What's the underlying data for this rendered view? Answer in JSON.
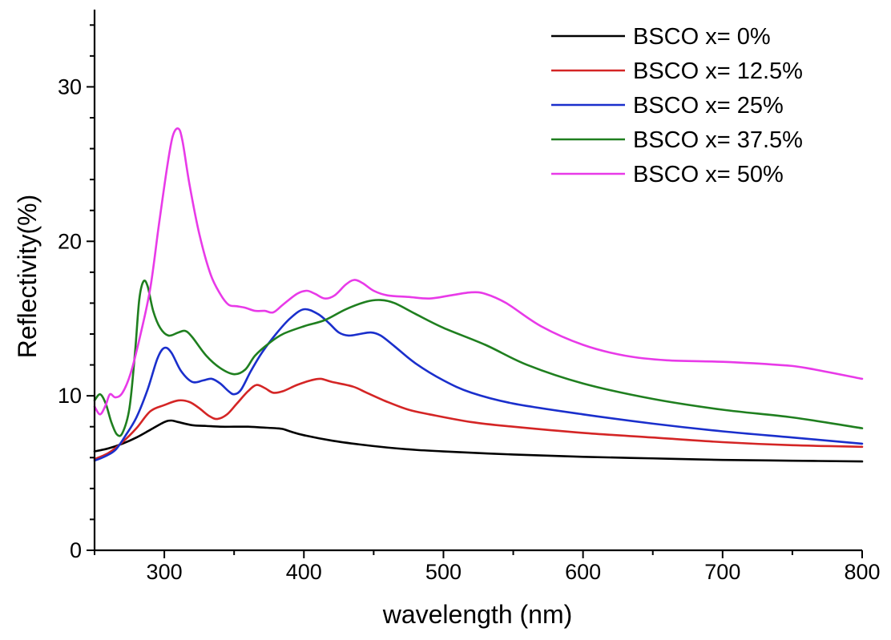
{
  "chart_data": {
    "type": "line",
    "title": "",
    "xlabel": "wavelength (nm)",
    "ylabel": "Reflectivity(%)",
    "xlim": [
      250,
      800
    ],
    "ylim": [
      0,
      35
    ],
    "x_ticks": [
      300,
      400,
      500,
      600,
      700,
      800
    ],
    "y_ticks": [
      0,
      10,
      20,
      30
    ],
    "grid": false,
    "legend_position": "top-right",
    "series": [
      {
        "name": "BSCO x= 0%",
        "color": "#000000",
        "points": [
          [
            250,
            6.4
          ],
          [
            260,
            6.6
          ],
          [
            270,
            6.9
          ],
          [
            280,
            7.3
          ],
          [
            290,
            7.8
          ],
          [
            300,
            8.3
          ],
          [
            305,
            8.4
          ],
          [
            310,
            8.3
          ],
          [
            320,
            8.1
          ],
          [
            330,
            8.05
          ],
          [
            340,
            8.0
          ],
          [
            350,
            8.0
          ],
          [
            360,
            8.0
          ],
          [
            370,
            7.95
          ],
          [
            380,
            7.9
          ],
          [
            385,
            7.85
          ],
          [
            390,
            7.7
          ],
          [
            400,
            7.45
          ],
          [
            420,
            7.1
          ],
          [
            440,
            6.85
          ],
          [
            460,
            6.65
          ],
          [
            480,
            6.5
          ],
          [
            500,
            6.4
          ],
          [
            550,
            6.2
          ],
          [
            600,
            6.05
          ],
          [
            650,
            5.95
          ],
          [
            700,
            5.85
          ],
          [
            750,
            5.8
          ],
          [
            800,
            5.75
          ]
        ]
      },
      {
        "name": "BSCO x= 12.5%",
        "color": "#d42525",
        "points": [
          [
            250,
            5.9
          ],
          [
            260,
            6.3
          ],
          [
            270,
            7.0
          ],
          [
            280,
            7.9
          ],
          [
            290,
            9.0
          ],
          [
            300,
            9.4
          ],
          [
            310,
            9.7
          ],
          [
            318,
            9.6
          ],
          [
            325,
            9.2
          ],
          [
            332,
            8.7
          ],
          [
            338,
            8.5
          ],
          [
            345,
            8.8
          ],
          [
            352,
            9.5
          ],
          [
            360,
            10.3
          ],
          [
            366,
            10.7
          ],
          [
            372,
            10.5
          ],
          [
            378,
            10.2
          ],
          [
            385,
            10.3
          ],
          [
            395,
            10.7
          ],
          [
            405,
            11.0
          ],
          [
            412,
            11.1
          ],
          [
            420,
            10.9
          ],
          [
            435,
            10.6
          ],
          [
            445,
            10.2
          ],
          [
            460,
            9.6
          ],
          [
            475,
            9.1
          ],
          [
            490,
            8.8
          ],
          [
            520,
            8.3
          ],
          [
            550,
            8.0
          ],
          [
            600,
            7.6
          ],
          [
            650,
            7.3
          ],
          [
            700,
            7.0
          ],
          [
            750,
            6.8
          ],
          [
            800,
            6.7
          ]
        ]
      },
      {
        "name": "BSCO x= 25%",
        "color": "#1a2fcc",
        "points": [
          [
            250,
            5.8
          ],
          [
            258,
            6.1
          ],
          [
            265,
            6.5
          ],
          [
            272,
            7.4
          ],
          [
            280,
            8.6
          ],
          [
            288,
            10.4
          ],
          [
            295,
            12.4
          ],
          [
            300,
            13.1
          ],
          [
            305,
            12.8
          ],
          [
            312,
            11.6
          ],
          [
            320,
            10.9
          ],
          [
            328,
            11.0
          ],
          [
            334,
            11.1
          ],
          [
            340,
            10.8
          ],
          [
            346,
            10.3
          ],
          [
            350,
            10.1
          ],
          [
            355,
            10.4
          ],
          [
            362,
            11.6
          ],
          [
            370,
            12.8
          ],
          [
            380,
            14.0
          ],
          [
            390,
            15.0
          ],
          [
            400,
            15.6
          ],
          [
            410,
            15.3
          ],
          [
            418,
            14.7
          ],
          [
            425,
            14.1
          ],
          [
            432,
            13.9
          ],
          [
            440,
            14.0
          ],
          [
            448,
            14.1
          ],
          [
            455,
            13.9
          ],
          [
            465,
            13.2
          ],
          [
            480,
            12.1
          ],
          [
            500,
            11.0
          ],
          [
            520,
            10.2
          ],
          [
            550,
            9.5
          ],
          [
            600,
            8.8
          ],
          [
            650,
            8.2
          ],
          [
            700,
            7.7
          ],
          [
            750,
            7.3
          ],
          [
            800,
            6.9
          ]
        ]
      },
      {
        "name": "BSCO x= 37.5%",
        "color": "#1f7f1f",
        "points": [
          [
            250,
            9.7
          ],
          [
            254,
            10.1
          ],
          [
            258,
            9.5
          ],
          [
            262,
            8.3
          ],
          [
            266,
            7.5
          ],
          [
            270,
            7.6
          ],
          [
            275,
            9.2
          ],
          [
            279,
            12.8
          ],
          [
            282,
            16.2
          ],
          [
            285,
            17.4
          ],
          [
            288,
            17.1
          ],
          [
            292,
            15.5
          ],
          [
            297,
            14.4
          ],
          [
            303,
            13.9
          ],
          [
            310,
            14.1
          ],
          [
            315,
            14.2
          ],
          [
            320,
            13.8
          ],
          [
            330,
            12.6
          ],
          [
            340,
            11.8
          ],
          [
            350,
            11.4
          ],
          [
            358,
            11.7
          ],
          [
            365,
            12.6
          ],
          [
            375,
            13.4
          ],
          [
            385,
            14.0
          ],
          [
            400,
            14.5
          ],
          [
            415,
            14.9
          ],
          [
            430,
            15.6
          ],
          [
            445,
            16.1
          ],
          [
            455,
            16.2
          ],
          [
            465,
            16.0
          ],
          [
            480,
            15.3
          ],
          [
            500,
            14.4
          ],
          [
            530,
            13.3
          ],
          [
            560,
            12.0
          ],
          [
            600,
            10.8
          ],
          [
            650,
            9.8
          ],
          [
            700,
            9.1
          ],
          [
            750,
            8.6
          ],
          [
            800,
            7.9
          ]
        ]
      },
      {
        "name": "BSCO x= 50%",
        "color": "#e83ae8",
        "points": [
          [
            250,
            9.3
          ],
          [
            254,
            8.8
          ],
          [
            258,
            9.4
          ],
          [
            261,
            10.1
          ],
          [
            265,
            9.9
          ],
          [
            270,
            10.2
          ],
          [
            276,
            11.5
          ],
          [
            283,
            14.0
          ],
          [
            290,
            17.0
          ],
          [
            296,
            21.0
          ],
          [
            302,
            24.8
          ],
          [
            306,
            26.8
          ],
          [
            310,
            27.3
          ],
          [
            313,
            26.5
          ],
          [
            318,
            23.7
          ],
          [
            325,
            20.5
          ],
          [
            333,
            17.9
          ],
          [
            340,
            16.6
          ],
          [
            346,
            15.9
          ],
          [
            352,
            15.8
          ],
          [
            358,
            15.7
          ],
          [
            365,
            15.5
          ],
          [
            372,
            15.5
          ],
          [
            378,
            15.4
          ],
          [
            385,
            15.9
          ],
          [
            395,
            16.6
          ],
          [
            402,
            16.8
          ],
          [
            408,
            16.6
          ],
          [
            415,
            16.3
          ],
          [
            422,
            16.5
          ],
          [
            430,
            17.2
          ],
          [
            436,
            17.5
          ],
          [
            442,
            17.3
          ],
          [
            450,
            16.8
          ],
          [
            460,
            16.5
          ],
          [
            475,
            16.4
          ],
          [
            490,
            16.3
          ],
          [
            505,
            16.5
          ],
          [
            520,
            16.7
          ],
          [
            530,
            16.6
          ],
          [
            545,
            16.0
          ],
          [
            570,
            14.5
          ],
          [
            600,
            13.3
          ],
          [
            630,
            12.6
          ],
          [
            660,
            12.3
          ],
          [
            700,
            12.2
          ],
          [
            740,
            12.0
          ],
          [
            760,
            11.8
          ],
          [
            800,
            11.1
          ]
        ]
      }
    ]
  }
}
